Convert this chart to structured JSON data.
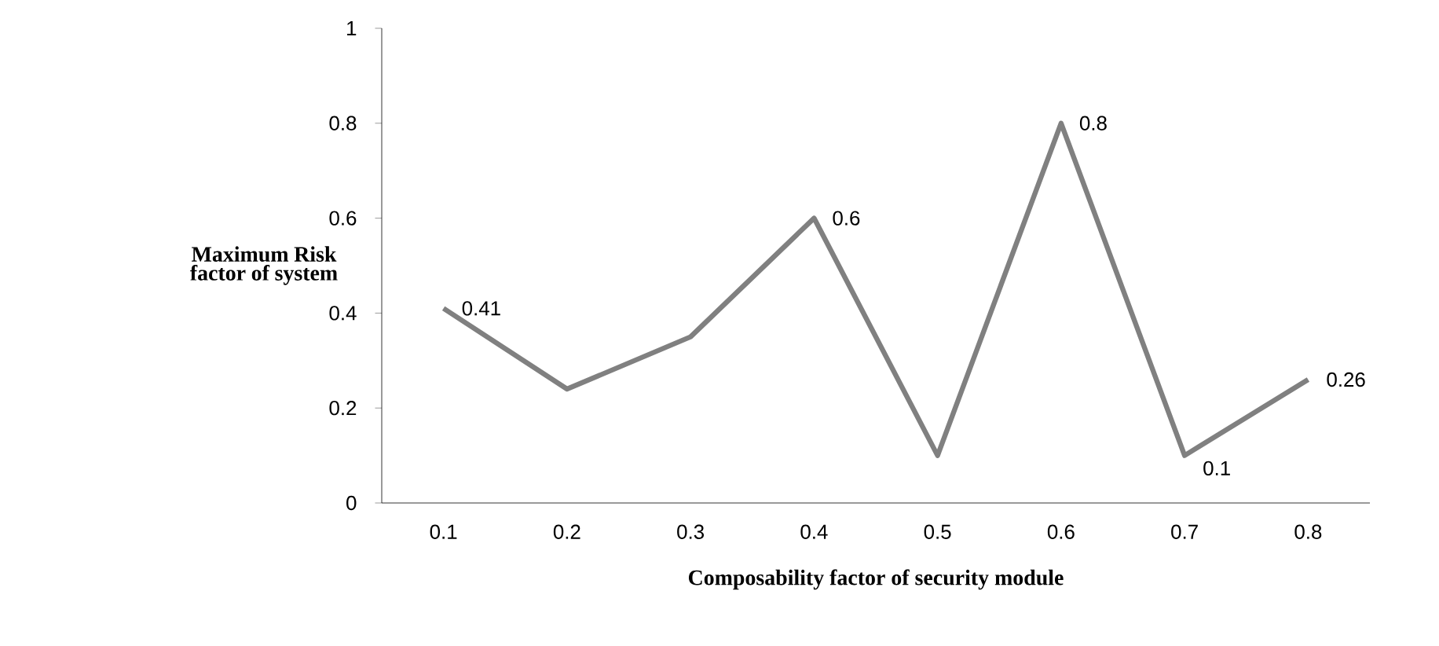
{
  "chart_data": {
    "type": "line",
    "xlabel": "Composability  factor  of security module",
    "ylabel": "Maximum Risk factor of system",
    "categories": [
      "0.1",
      "0.2",
      "0.3",
      "0.4",
      "0.5",
      "0.6",
      "0.7",
      "0.8"
    ],
    "values": [
      0.41,
      0.24,
      0.35,
      0.6,
      0.1,
      0.8,
      0.1,
      0.26
    ],
    "value_labels": [
      "0.41",
      null,
      null,
      "0.6",
      null,
      "0.8",
      "0.1",
      "0.26"
    ],
    "color": "#808080",
    "ylim": [
      0,
      1
    ],
    "yticks": [
      0,
      0.2,
      0.4,
      0.6,
      0.8,
      1
    ],
    "grid": false,
    "marker": "none",
    "line_style": "solid"
  }
}
